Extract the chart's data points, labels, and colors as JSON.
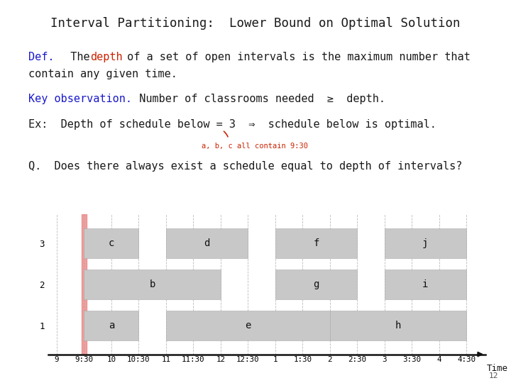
{
  "title": "Interval Partitioning:  Lower Bound on Optimal Solution",
  "intervals": [
    {
      "label": "a",
      "row": 1,
      "start": 9.5,
      "end": 10.5
    },
    {
      "label": "e",
      "row": 1,
      "start": 11.0,
      "end": 14.0
    },
    {
      "label": "h",
      "row": 1,
      "start": 14.0,
      "end": 16.5
    },
    {
      "label": "b",
      "row": 2,
      "start": 9.5,
      "end": 12.0
    },
    {
      "label": "g",
      "row": 2,
      "start": 13.0,
      "end": 14.5
    },
    {
      "label": "i",
      "row": 2,
      "start": 15.0,
      "end": 16.5
    },
    {
      "label": "c",
      "row": 3,
      "start": 9.5,
      "end": 10.5
    },
    {
      "label": "d",
      "row": 3,
      "start": 11.0,
      "end": 12.5
    },
    {
      "label": "f",
      "row": 3,
      "start": 13.0,
      "end": 14.5
    },
    {
      "label": "j",
      "row": 3,
      "start": 15.0,
      "end": 16.5
    }
  ],
  "bar_color": "#c8c8c8",
  "bar_height": 0.72,
  "highlight_x": 9.5,
  "highlight_color": "#e88080",
  "time_ticks": [
    9,
    9.5,
    10,
    10.5,
    11,
    11.5,
    12,
    12.5,
    13,
    13.5,
    14,
    14.5,
    15,
    15.5,
    16,
    16.5
  ],
  "time_labels": [
    "9",
    "9:30",
    "10",
    "10:30",
    "11",
    "11:30",
    "12",
    "12:30",
    "1",
    "1:30",
    "2",
    "2:30",
    "3",
    "3:30",
    "4",
    "4:30"
  ],
  "background_color": "#ffffff",
  "page_number": "12",
  "xlim_left": 8.85,
  "xlim_right": 16.85,
  "ylim_bottom": 0.3,
  "ylim_top": 3.7
}
